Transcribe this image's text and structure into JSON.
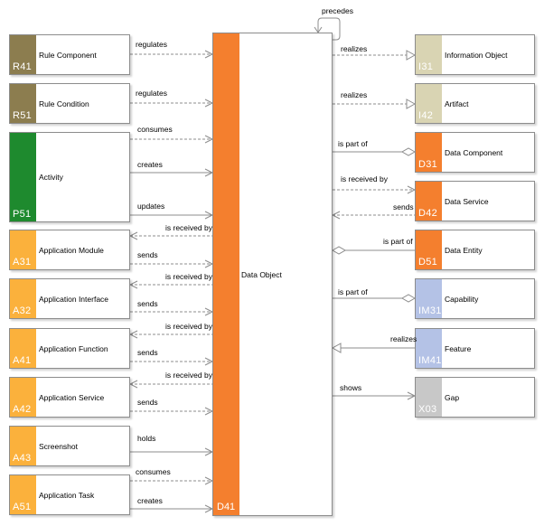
{
  "center": {
    "code": "D41",
    "label": "Data Object",
    "color": "#f47f2e"
  },
  "self_relation": "precedes",
  "colors": {
    "rule": "#8c7d4f",
    "activity": "#1e8a2e",
    "application": "#fbb13c",
    "data": "#f47f2e",
    "information": "#d9d4b3",
    "capability": "#b4c2e6",
    "gap": "#c8c8c8"
  },
  "left_nodes": [
    {
      "code": "R41",
      "label": "Rule Component",
      "kind": "rule"
    },
    {
      "code": "R51",
      "label": "Rule Condition",
      "kind": "rule"
    },
    {
      "code": "P51",
      "label": "Activity",
      "kind": "activity"
    },
    {
      "code": "A31",
      "label": "Application Module",
      "kind": "application"
    },
    {
      "code": "A32",
      "label": "Application Interface",
      "kind": "application"
    },
    {
      "code": "A41",
      "label": "Application Function",
      "kind": "application"
    },
    {
      "code": "A42",
      "label": "Application Service",
      "kind": "application"
    },
    {
      "code": "A43",
      "label": "Screenshot",
      "kind": "application"
    },
    {
      "code": "A51",
      "label": "Application Task",
      "kind": "application"
    }
  ],
  "right_nodes": [
    {
      "code": "I31",
      "label": "Information Object",
      "kind": "information"
    },
    {
      "code": "I42",
      "label": "Artifact",
      "kind": "information"
    },
    {
      "code": "D31",
      "label": "Data Component",
      "kind": "data"
    },
    {
      "code": "D42",
      "label": "Data Service",
      "kind": "data"
    },
    {
      "code": "D51",
      "label": "Data Entity",
      "kind": "data"
    },
    {
      "code": "IM31",
      "label": "Capability",
      "kind": "capability"
    },
    {
      "code": "IM41",
      "label": "Feature",
      "kind": "capability"
    },
    {
      "code": "X03",
      "label": "Gap",
      "kind": "gap"
    }
  ],
  "left_edges": [
    {
      "label": "regulates"
    },
    {
      "label": "regulates"
    },
    {
      "label": "consumes"
    },
    {
      "label": "creates"
    },
    {
      "label": "updates"
    },
    {
      "label": "is received by"
    },
    {
      "label": "sends"
    },
    {
      "label": "is received by"
    },
    {
      "label": "sends"
    },
    {
      "label": "is received by"
    },
    {
      "label": "sends"
    },
    {
      "label": "is received by"
    },
    {
      "label": "sends"
    },
    {
      "label": "holds"
    },
    {
      "label": "consumes"
    },
    {
      "label": "creates"
    }
  ],
  "right_edges": [
    {
      "label": "realizes"
    },
    {
      "label": "realizes"
    },
    {
      "label": "is part of"
    },
    {
      "label": "is received by"
    },
    {
      "label": "sends"
    },
    {
      "label": "is part of"
    },
    {
      "label": "is part of"
    },
    {
      "label": "realizes"
    },
    {
      "label": "shows"
    }
  ]
}
